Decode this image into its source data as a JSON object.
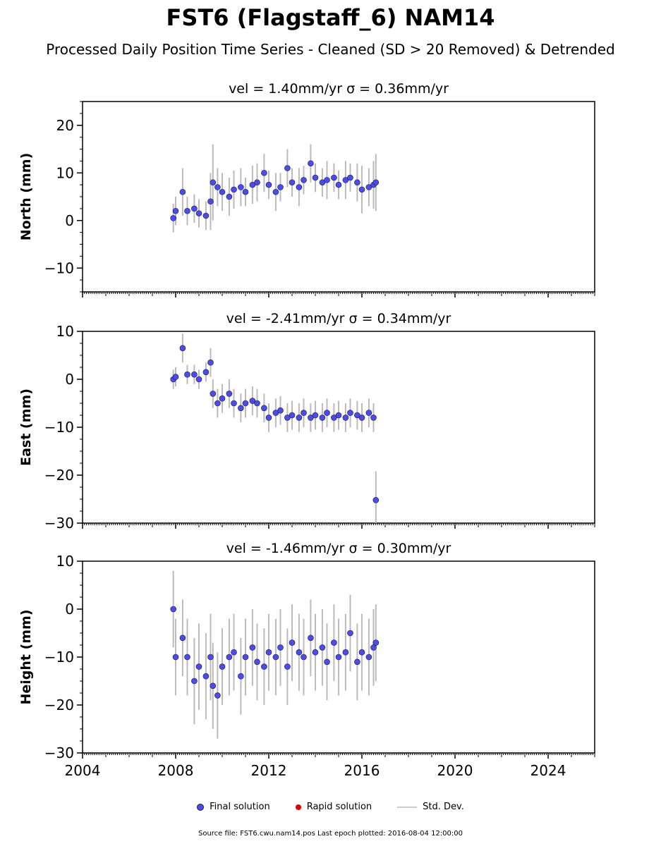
{
  "header": {
    "title": "FST6 (Flagstaff_6) NAM14",
    "subtitle": "Processed Daily Position Time Series - Cleaned (SD > 20 Removed) & Detrended"
  },
  "colors": {
    "final": "#4b4bf5",
    "rapid": "#e00000",
    "stddev": "#bbbbbb"
  },
  "legend": {
    "final": "Final solution",
    "rapid": "Rapid solution",
    "stddev": "Std. Dev."
  },
  "footer": {
    "source": "Source file: FST6.cwu.nam14.pos  Last epoch plotted: 2016-08-04 12:00:00"
  },
  "chart_data": [
    {
      "type": "scatter",
      "title": "vel = 1.40mm/yr   σ = 0.36mm/yr",
      "ylabel": "North (mm)",
      "xlim": [
        2004,
        2026
      ],
      "ylim": [
        -15,
        25
      ],
      "yticks": [
        -10,
        0,
        10,
        20
      ],
      "xticks": [
        2004,
        2008,
        2012,
        2016,
        2020,
        2024
      ],
      "show_xticklabels": false,
      "series": [
        {
          "x": [
            2007.9,
            2008.0,
            2008.3,
            2008.5,
            2008.8,
            2009.0,
            2009.3,
            2009.5,
            2009.6,
            2009.8,
            2010.0,
            2010.3,
            2010.5,
            2010.8,
            2011.0,
            2011.3,
            2011.5,
            2011.8,
            2012.0,
            2012.3,
            2012.5,
            2012.8,
            2013.0,
            2013.3,
            2013.5,
            2013.8,
            2014.0,
            2014.3,
            2014.5,
            2014.8,
            2015.0,
            2015.3,
            2015.5,
            2015.8,
            2016.0,
            2016.3,
            2016.5,
            2016.6
          ],
          "y": [
            0.5,
            2.0,
            6.0,
            2.0,
            2.5,
            1.5,
            1.0,
            4.0,
            8.0,
            7.0,
            6.0,
            5.0,
            6.5,
            7.0,
            6.0,
            7.5,
            8.0,
            10.0,
            7.5,
            6.0,
            7.0,
            11.0,
            8.0,
            7.0,
            8.5,
            12.0,
            9.0,
            8.0,
            8.5,
            9.0,
            7.5,
            8.5,
            9.0,
            8.0,
            6.5,
            7.0,
            7.5,
            8.0
          ],
          "err": [
            3,
            3,
            5,
            3,
            3,
            3,
            3,
            6,
            8,
            4,
            4,
            4,
            4,
            4,
            3,
            4,
            4,
            4,
            3,
            4,
            3,
            4,
            3,
            4,
            3,
            4,
            3,
            3,
            4,
            3,
            3,
            4,
            3,
            4,
            5,
            4,
            5,
            6
          ]
        }
      ]
    },
    {
      "type": "scatter",
      "title": "vel = -2.41mm/yr   σ = 0.34mm/yr",
      "ylabel": "East (mm)",
      "xlim": [
        2004,
        2026
      ],
      "ylim": [
        -30,
        10
      ],
      "yticks": [
        -30,
        -20,
        -10,
        0,
        10
      ],
      "xticks": [
        2004,
        2008,
        2012,
        2016,
        2020,
        2024
      ],
      "show_xticklabels": false,
      "series": [
        {
          "x": [
            2007.9,
            2008.0,
            2008.3,
            2008.5,
            2008.8,
            2009.0,
            2009.3,
            2009.5,
            2009.6,
            2009.8,
            2010.0,
            2010.3,
            2010.5,
            2010.8,
            2011.0,
            2011.3,
            2011.5,
            2011.8,
            2012.0,
            2012.3,
            2012.5,
            2012.8,
            2013.0,
            2013.3,
            2013.5,
            2013.8,
            2014.0,
            2014.3,
            2014.5,
            2014.8,
            2015.0,
            2015.3,
            2015.5,
            2015.8,
            2016.0,
            2016.3,
            2016.5,
            2016.6
          ],
          "y": [
            0.0,
            0.5,
            6.5,
            1.0,
            1.0,
            0.0,
            1.5,
            3.5,
            -3.0,
            -5.0,
            -4.0,
            -3.0,
            -5.0,
            -6.0,
            -5.0,
            -4.5,
            -5.0,
            -6.0,
            -8.0,
            -7.0,
            -6.5,
            -8.0,
            -7.5,
            -8.0,
            -7.0,
            -8.0,
            -7.5,
            -8.0,
            -7.0,
            -8.0,
            -7.5,
            -8.0,
            -7.0,
            -7.5,
            -8.0,
            -7.0,
            -8.0,
            -25.2
          ],
          "err": [
            2,
            2,
            3,
            2,
            2,
            2,
            2,
            3,
            3,
            3,
            3,
            3,
            3,
            3,
            3,
            3,
            3,
            3,
            3,
            3,
            3,
            3,
            3,
            3,
            3,
            3,
            3,
            3,
            3,
            3,
            3,
            3,
            3,
            3,
            3,
            3,
            3,
            6
          ]
        }
      ]
    },
    {
      "type": "scatter",
      "title": "vel = -1.46mm/yr   σ = 0.30mm/yr",
      "ylabel": "Height (mm)",
      "xlim": [
        2004,
        2026
      ],
      "ylim": [
        -30,
        10
      ],
      "yticks": [
        -30,
        -20,
        -10,
        0,
        10
      ],
      "xticks": [
        2004,
        2008,
        2012,
        2016,
        2020,
        2024
      ],
      "show_xticklabels": true,
      "series": [
        {
          "x": [
            2007.9,
            2008.0,
            2008.3,
            2008.5,
            2008.8,
            2009.0,
            2009.3,
            2009.5,
            2009.6,
            2009.8,
            2010.0,
            2010.3,
            2010.5,
            2010.8,
            2011.0,
            2011.3,
            2011.5,
            2011.8,
            2012.0,
            2012.3,
            2012.5,
            2012.8,
            2013.0,
            2013.3,
            2013.5,
            2013.8,
            2014.0,
            2014.3,
            2014.5,
            2014.8,
            2015.0,
            2015.3,
            2015.5,
            2015.8,
            2016.0,
            2016.3,
            2016.5,
            2016.6
          ],
          "y": [
            0.0,
            -10.0,
            -6.0,
            -10.0,
            -15.0,
            -12.0,
            -14.0,
            -10.0,
            -16.0,
            -18.0,
            -12.0,
            -10.0,
            -9.0,
            -14.0,
            -10.0,
            -8.0,
            -11.0,
            -12.0,
            -9.0,
            -10.0,
            -8.0,
            -12.0,
            -7.0,
            -9.0,
            -10.0,
            -6.0,
            -9.0,
            -8.0,
            -11.0,
            -7.0,
            -10.0,
            -9.0,
            -5.0,
            -11.0,
            -9.0,
            -10.0,
            -8.0,
            -7.0
          ],
          "err": [
            8,
            8,
            8,
            8,
            9,
            9,
            9,
            9,
            9,
            9,
            8,
            8,
            8,
            8,
            8,
            8,
            8,
            8,
            8,
            8,
            8,
            8,
            8,
            8,
            8,
            8,
            8,
            8,
            8,
            8,
            8,
            8,
            8,
            8,
            8,
            8,
            8,
            8
          ]
        }
      ]
    }
  ]
}
